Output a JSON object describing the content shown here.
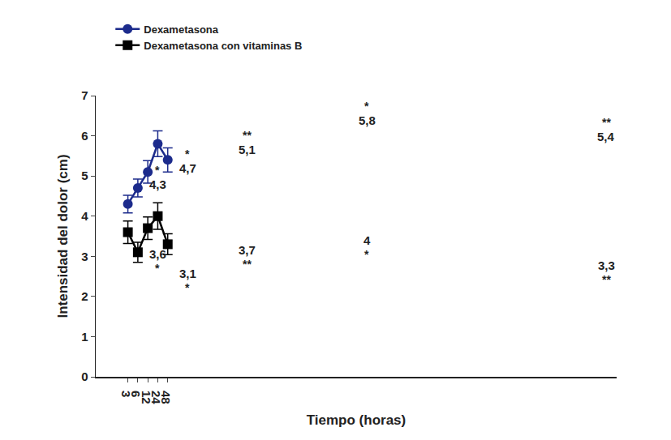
{
  "chart_data": {
    "type": "line",
    "x_label": "Tiempo (horas)",
    "y_label": "Intensidad del dolor (cm)",
    "categories": [
      "3",
      "6",
      "12",
      "24",
      "48"
    ],
    "ylim": [
      0,
      7
    ],
    "yticks": [
      0,
      1,
      2,
      3,
      4,
      5,
      6,
      7
    ],
    "grid": false,
    "legend": "top left",
    "data_labels": true,
    "series": [
      {
        "name": "Dexametasona",
        "color": "#1c2b8c",
        "marker": "circle",
        "line_style": "solid",
        "values": [
          4.3,
          4.7,
          5.1,
          5.8,
          5.4
        ],
        "value_labels": [
          "4,3",
          "4,7",
          "5,1",
          "5,8",
          "5,4"
        ],
        "error": [
          0.22,
          0.22,
          0.28,
          0.32,
          0.3
        ],
        "annotations": [
          "*",
          "*",
          "**",
          "*",
          "**"
        ]
      },
      {
        "name": "Dexametasona con vitaminas B",
        "color": "#000000",
        "marker": "square",
        "line_style": "solid",
        "values": [
          3.6,
          3.1,
          3.7,
          4,
          3.3
        ],
        "value_labels": [
          "3,6",
          "3,1",
          "3,7",
          "4",
          "3,3"
        ],
        "error": [
          0.28,
          0.25,
          0.28,
          0.33,
          0.26
        ],
        "annotations": [
          "*",
          "*",
          "**",
          "*",
          "**"
        ]
      }
    ]
  }
}
